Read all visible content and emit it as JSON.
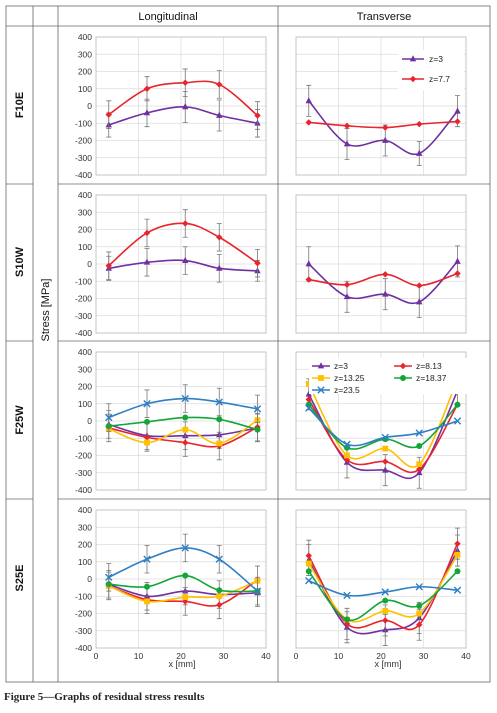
{
  "columns": [
    "Longitudinal",
    "Transverse"
  ],
  "rows": [
    "F10E",
    "S10W",
    "F25W",
    "S25E"
  ],
  "stress_axis_label": "Stress [MPa]",
  "x_axis_label": "x [mm]",
  "caption": "Figure 5—Graphs of residual stress results",
  "colors": {
    "z3": "#7030a0",
    "z7_7": "#e8242c",
    "z8_13": "#e8242c",
    "z13_25": "#ffc000",
    "z18_37": "#13a538",
    "z23_5": "#2e7fc4"
  },
  "chart_data": [
    {
      "type": "line",
      "row": "F10E",
      "column": "Longitudinal",
      "x": [
        3,
        12,
        21,
        29,
        38
      ],
      "ylim": [
        -400,
        400
      ],
      "xlim": [
        0,
        40
      ],
      "series": [
        {
          "name": "z=3",
          "color": "#7030a0",
          "marker": "triangle",
          "values": [
            -110,
            -40,
            -5,
            -55,
            -100
          ],
          "errors": [
            70,
            80,
            90,
            90,
            80
          ]
        },
        {
          "name": "z=7.7",
          "color": "#e8242c",
          "marker": "diamond",
          "values": [
            -50,
            100,
            135,
            125,
            -55
          ],
          "errors": [
            80,
            70,
            80,
            80,
            80
          ]
        }
      ]
    },
    {
      "type": "line",
      "row": "F10E",
      "column": "Transverse",
      "x": [
        3,
        12,
        21,
        29,
        38
      ],
      "ylim": [
        -400,
        400
      ],
      "xlim": [
        0,
        40
      ],
      "legend": "top-right",
      "series": [
        {
          "name": "z=3",
          "color": "#7030a0",
          "marker": "triangle",
          "values": [
            30,
            -220,
            -200,
            -275,
            -30
          ],
          "errors": [
            90,
            90,
            90,
            70,
            90
          ]
        },
        {
          "name": "z=7.7",
          "color": "#e8242c",
          "marker": "diamond",
          "values": [
            -95,
            -115,
            -125,
            -105,
            -90
          ],
          "errors": [
            0,
            0,
            0,
            0,
            0
          ]
        }
      ]
    },
    {
      "type": "line",
      "row": "S10W",
      "column": "Longitudinal",
      "x": [
        3,
        12,
        21,
        29,
        38
      ],
      "ylim": [
        -400,
        400
      ],
      "xlim": [
        0,
        40
      ],
      "series": [
        {
          "name": "z=3",
          "color": "#7030a0",
          "marker": "triangle",
          "values": [
            -25,
            10,
            20,
            -25,
            -40
          ],
          "errors": [
            70,
            80,
            80,
            80,
            60
          ]
        },
        {
          "name": "z=7.7",
          "color": "#e8242c",
          "marker": "diamond",
          "values": [
            -10,
            180,
            235,
            155,
            5
          ],
          "errors": [
            80,
            80,
            80,
            80,
            80
          ]
        }
      ]
    },
    {
      "type": "line",
      "row": "S10W",
      "column": "Transverse",
      "x": [
        3,
        12,
        21,
        29,
        38
      ],
      "ylim": [
        -400,
        400
      ],
      "xlim": [
        0,
        40
      ],
      "series": [
        {
          "name": "z=3",
          "color": "#7030a0",
          "marker": "triangle",
          "values": [
            0,
            -190,
            -175,
            -220,
            15
          ],
          "errors": [
            100,
            90,
            90,
            90,
            90
          ]
        },
        {
          "name": "z=7.7",
          "color": "#e8242c",
          "marker": "diamond",
          "values": [
            -90,
            -120,
            -60,
            -125,
            -55
          ],
          "errors": [
            0,
            0,
            0,
            0,
            0
          ]
        }
      ]
    },
    {
      "type": "line",
      "row": "F25W",
      "column": "Longitudinal",
      "x": [
        3,
        12,
        21,
        29,
        38
      ],
      "ylim": [
        -400,
        400
      ],
      "xlim": [
        0,
        40
      ],
      "series": [
        {
          "name": "z=3",
          "color": "#7030a0",
          "marker": "triangle",
          "values": [
            -20,
            -85,
            -85,
            -80,
            -40
          ],
          "errors": [
            80,
            80,
            80,
            80,
            80
          ]
        },
        {
          "name": "z=8.13",
          "color": "#e8242c",
          "marker": "diamond",
          "values": [
            -40,
            -95,
            -125,
            -145,
            -35
          ],
          "errors": [
            80,
            80,
            80,
            80,
            80
          ]
        },
        {
          "name": "z=13.25",
          "color": "#ffc000",
          "marker": "square",
          "values": [
            -45,
            -125,
            -50,
            -130,
            5
          ],
          "errors": [
            0,
            0,
            0,
            0,
            0
          ]
        },
        {
          "name": "z=18.37",
          "color": "#13a538",
          "marker": "circle",
          "values": [
            -30,
            -5,
            20,
            10,
            -50
          ],
          "errors": [
            0,
            0,
            0,
            0,
            0
          ]
        },
        {
          "name": "z=23.5",
          "color": "#2e7fc4",
          "marker": "x",
          "values": [
            20,
            100,
            130,
            110,
            70
          ],
          "errors": [
            80,
            80,
            80,
            80,
            80
          ]
        }
      ]
    },
    {
      "type": "line",
      "row": "F25W",
      "column": "Transverse",
      "x": [
        3,
        12,
        21,
        29,
        38
      ],
      "ylim": [
        -400,
        400
      ],
      "xlim": [
        0,
        40
      ],
      "legend": "top",
      "series": [
        {
          "name": "z=3",
          "color": "#7030a0",
          "marker": "triangle",
          "values": [
            155,
            -240,
            -285,
            -300,
            175
          ],
          "errors": [
            90,
            90,
            90,
            90,
            90
          ]
        },
        {
          "name": "z=8.13",
          "color": "#e8242c",
          "marker": "diamond",
          "values": [
            125,
            -225,
            -235,
            -280,
            95
          ],
          "errors": [
            0,
            0,
            0,
            0,
            0
          ]
        },
        {
          "name": "z=13.25",
          "color": "#ffc000",
          "marker": "square",
          "values": [
            215,
            -200,
            -160,
            -250,
            240
          ],
          "errors": [
            0,
            0,
            0,
            0,
            0
          ]
        },
        {
          "name": "z=18.37",
          "color": "#13a538",
          "marker": "circle",
          "values": [
            95,
            -155,
            -105,
            -145,
            95
          ],
          "errors": [
            0,
            0,
            0,
            0,
            0
          ]
        },
        {
          "name": "z=23.5",
          "color": "#2e7fc4",
          "marker": "x",
          "values": [
            75,
            -135,
            -95,
            -70,
            0
          ],
          "errors": [
            0,
            0,
            0,
            0,
            0
          ]
        }
      ]
    },
    {
      "type": "line",
      "row": "S25E",
      "column": "Longitudinal",
      "x": [
        3,
        12,
        21,
        29,
        38
      ],
      "ylim": [
        -400,
        400
      ],
      "xlim": [
        0,
        40
      ],
      "series": [
        {
          "name": "z=3",
          "color": "#7030a0",
          "marker": "triangle",
          "values": [
            -30,
            -100,
            -70,
            -90,
            -80
          ],
          "errors": [
            80,
            80,
            80,
            80,
            80
          ]
        },
        {
          "name": "z=8.13",
          "color": "#e8242c",
          "marker": "diamond",
          "values": [
            -40,
            -120,
            -130,
            -150,
            -5
          ],
          "errors": [
            80,
            80,
            80,
            80,
            80
          ]
        },
        {
          "name": "z=13.25",
          "color": "#ffc000",
          "marker": "square",
          "values": [
            -40,
            -130,
            -105,
            -100,
            -10
          ],
          "errors": [
            0,
            0,
            0,
            0,
            0
          ]
        },
        {
          "name": "z=18.37",
          "color": "#13a538",
          "marker": "circle",
          "values": [
            -30,
            -45,
            20,
            -65,
            -70
          ],
          "errors": [
            0,
            0,
            0,
            0,
            0
          ]
        },
        {
          "name": "z=23.5",
          "color": "#2e7fc4",
          "marker": "x",
          "values": [
            10,
            115,
            180,
            115,
            -70
          ],
          "errors": [
            80,
            80,
            80,
            80,
            80
          ]
        }
      ]
    },
    {
      "type": "line",
      "row": "S25E",
      "column": "Transverse",
      "x": [
        3,
        12,
        21,
        29,
        38
      ],
      "ylim": [
        -400,
        400
      ],
      "xlim": [
        0,
        40
      ],
      "series": [
        {
          "name": "z=3",
          "color": "#7030a0",
          "marker": "triangle",
          "values": [
            110,
            -280,
            -295,
            -225,
            165
          ],
          "errors": [
            90,
            90,
            90,
            90,
            90
          ]
        },
        {
          "name": "z=8.13",
          "color": "#e8242c",
          "marker": "diamond",
          "values": [
            135,
            -260,
            -240,
            -265,
            205
          ],
          "errors": [
            90,
            90,
            90,
            90,
            90
          ]
        },
        {
          "name": "z=13.25",
          "color": "#ffc000",
          "marker": "square",
          "values": [
            90,
            -235,
            -185,
            -200,
            140
          ],
          "errors": [
            0,
            0,
            0,
            0,
            0
          ]
        },
        {
          "name": "z=18.37",
          "color": "#13a538",
          "marker": "circle",
          "values": [
            45,
            -235,
            -125,
            -155,
            45
          ],
          "errors": [
            0,
            0,
            0,
            0,
            0
          ]
        },
        {
          "name": "z=23.5",
          "color": "#2e7fc4",
          "marker": "x",
          "values": [
            -10,
            -95,
            -75,
            -45,
            -65
          ],
          "errors": [
            0,
            0,
            0,
            0,
            0
          ]
        }
      ]
    }
  ],
  "y_ticks": [
    400,
    300,
    200,
    100,
    0,
    -100,
    -200,
    -300,
    -400
  ],
  "x_ticks": [
    0,
    10,
    20,
    30,
    40
  ],
  "legends": {
    "F10E_transverse": [
      "z=3",
      "z=7.7"
    ],
    "F25W_transverse": [
      "z=3",
      "z=8.13",
      "z=13.25",
      "z=18.37",
      "z=23.5"
    ]
  }
}
